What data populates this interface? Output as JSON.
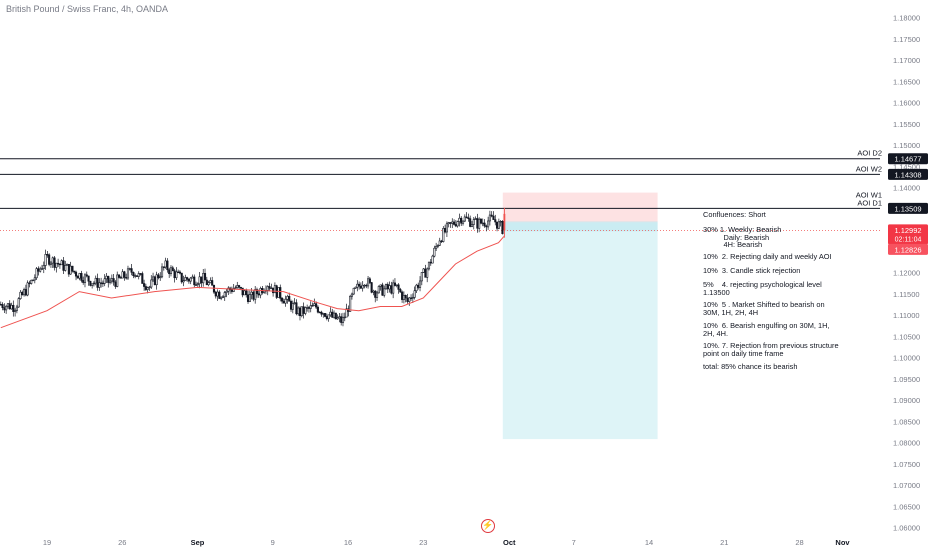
{
  "header": {
    "title": "British Pound / Swiss Franc, 4h, OANDA"
  },
  "chart_data": {
    "type": "candlestick",
    "symbol": "British Pound / Swiss Franc",
    "timeframe": "4h",
    "source": "OANDA",
    "ylim": [
      1.0595,
      1.1815
    ],
    "y_ticks": [
      "1.18000",
      "1.17500",
      "1.17000",
      "1.16500",
      "1.16000",
      "1.15500",
      "1.15000",
      "1.14500",
      "1.14000",
      "1.13500",
      "1.13000",
      "1.12500",
      "1.12000",
      "1.11500",
      "1.11000",
      "1.10500",
      "1.10000",
      "1.09500",
      "1.09000",
      "1.08500",
      "1.08000",
      "1.07500",
      "1.07000",
      "1.06500",
      "1.06000"
    ],
    "x_ticks": [
      {
        "label": "19",
        "t": 0
      },
      {
        "label": "26",
        "t": 7
      },
      {
        "label": "Sep",
        "t": 14
      },
      {
        "label": "9",
        "t": 21
      },
      {
        "label": "16",
        "t": 28
      },
      {
        "label": "23",
        "t": 35
      },
      {
        "label": "Oct",
        "t": 43
      },
      {
        "label": "7",
        "t": 49
      },
      {
        "label": "14",
        "t": 56
      },
      {
        "label": "21",
        "t": 63
      },
      {
        "label": "28",
        "t": 70
      },
      {
        "label": "Nov",
        "t": 74
      }
    ],
    "price_path": [
      [
        -4.3,
        1.1125
      ],
      [
        -3.0,
        1.112
      ],
      [
        -1.0,
        1.1195
      ],
      [
        0.0,
        1.1235
      ],
      [
        1.5,
        1.1215
      ],
      [
        3.0,
        1.1195
      ],
      [
        4.5,
        1.1175
      ],
      [
        6.5,
        1.118
      ],
      [
        8.0,
        1.1205
      ],
      [
        9.5,
        1.1165
      ],
      [
        11.0,
        1.1215
      ],
      [
        12.5,
        1.1185
      ],
      [
        14.5,
        1.1185
      ],
      [
        16.0,
        1.115
      ],
      [
        17.5,
        1.1165
      ],
      [
        19.0,
        1.114
      ],
      [
        20.5,
        1.1175
      ],
      [
        22.0,
        1.114
      ],
      [
        23.5,
        1.1105
      ],
      [
        25.0,
        1.112
      ],
      [
        26.5,
        1.1095
      ],
      [
        27.5,
        1.1085
      ],
      [
        28.5,
        1.115
      ],
      [
        29.5,
        1.1185
      ],
      [
        30.5,
        1.1155
      ],
      [
        32.5,
        1.1165
      ],
      [
        33.5,
        1.113
      ],
      [
        35.5,
        1.1215
      ],
      [
        36.5,
        1.128
      ],
      [
        37.5,
        1.131
      ],
      [
        38.5,
        1.133
      ],
      [
        40.0,
        1.1315
      ],
      [
        41.5,
        1.1325
      ],
      [
        42.5,
        1.13
      ]
    ],
    "moving_average": [
      [
        -4.3,
        1.107
      ],
      [
        0.0,
        1.111
      ],
      [
        3.0,
        1.1155
      ],
      [
        6.0,
        1.114
      ],
      [
        10.0,
        1.1155
      ],
      [
        14.0,
        1.1165
      ],
      [
        18.0,
        1.116
      ],
      [
        22.0,
        1.1155
      ],
      [
        25.0,
        1.113
      ],
      [
        27.0,
        1.1115
      ],
      [
        29.0,
        1.111
      ],
      [
        31.0,
        1.112
      ],
      [
        33.0,
        1.112
      ],
      [
        35.0,
        1.114
      ],
      [
        36.5,
        1.118
      ],
      [
        38.0,
        1.122
      ],
      [
        40.0,
        1.125
      ],
      [
        42.0,
        1.127
      ],
      [
        42.5,
        1.1285
      ]
    ],
    "horizontal_levels": [
      {
        "label": "AOI D2",
        "price": 1.14677,
        "tag": "1.14677"
      },
      {
        "label": "AOI W2",
        "price": 1.14308,
        "tag": "1.14308"
      },
      {
        "label": "AOI W1 / AOI D1",
        "price": 1.13509,
        "tag": "1.13509"
      }
    ],
    "current_price": {
      "price": "1.12992",
      "countdown": "02:11:04",
      "value": 1.12992
    },
    "price_tag_2": {
      "price": "1.12826",
      "value": 1.12826
    },
    "position": {
      "type": "short",
      "t_start": 42.4,
      "t_end": 56.8,
      "entry": 1.1318,
      "stop": 1.1388,
      "target": 1.0808
    },
    "colors": {
      "bull_candle": "#131722",
      "bear_candle": "#131722",
      "moving_average": "#ef5350",
      "stop_zone": "#fde2e3",
      "target_zone": "#def4f7",
      "price_line": "#ef5350",
      "level_tag_bg": "#131722",
      "axis_text": "#787b86"
    }
  },
  "annotations": {
    "level_labels": [
      "AOI D2",
      "AOI W2",
      "AOI W1",
      "AOI D1"
    ],
    "notes": [
      "Confluences: Short",
      "30% 1. Weekly: Bearish\n          Daily: Bearish\n          4H: Bearish",
      "10%  2. Rejecting daily and weekly AOI",
      "10%  3. Candle stick rejection",
      "5%    4. rejecting psychological level\n1.13500",
      "10%  5 . Market Shifted to bearish on\n30M, 1H, 2H, 4H",
      "10%  6. Bearish engulfing on 30M, 1H,\n2H, 4H.",
      "10%. 7. Rejection from previous structure\npoint on daily time frame",
      "total: 85% chance its bearish"
    ]
  }
}
